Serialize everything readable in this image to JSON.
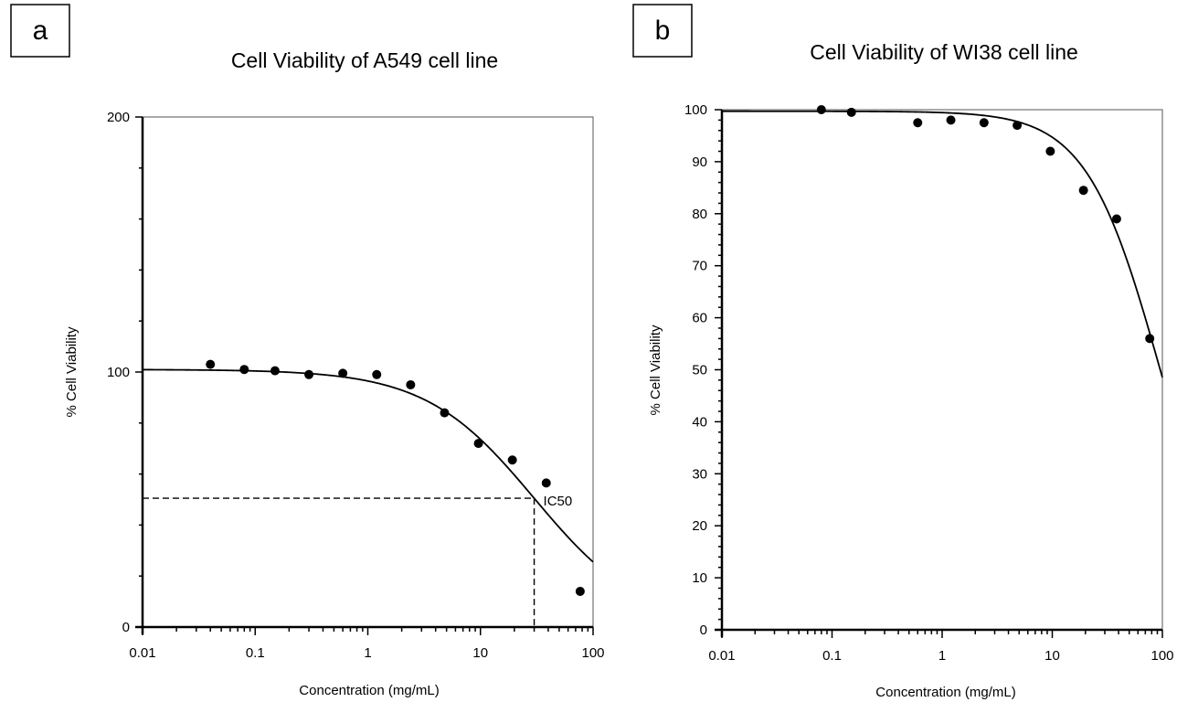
{
  "panels": [
    {
      "letter": "a"
    },
    {
      "letter": "b"
    }
  ],
  "chart_data": [
    {
      "type": "scatter",
      "title": "Cell Viability of A549 cell line",
      "xlabel": "Concentration (mg/mL)",
      "ylabel": "% Cell Viability",
      "xscale": "log",
      "xlim": [
        0.01,
        100
      ],
      "ylim": [
        0,
        200
      ],
      "xticks": [
        0.01,
        0.1,
        1,
        10,
        100
      ],
      "xtick_labels": [
        "0.01",
        "0.1",
        "1",
        "10",
        "100"
      ],
      "yticks": [
        0,
        100,
        200
      ],
      "ytick_labels": [
        "0",
        "100",
        "200"
      ],
      "grid": false,
      "series": [
        {
          "x": [
            0.04,
            0.08,
            0.15,
            0.3,
            0.6,
            1.2,
            2.4,
            4.8,
            9.6,
            19.2,
            38.4,
            76.8
          ],
          "y": [
            103,
            101,
            100.5,
            99,
            99.5,
            99,
            95,
            84,
            72,
            65.5,
            56.5,
            14
          ]
        }
      ],
      "fit_curve": {
        "top": 101,
        "bottom": 0,
        "ic50": 30,
        "hill": 0.9
      },
      "annotation": {
        "label": "IC50",
        "x": 30,
        "y": 50.5
      }
    },
    {
      "type": "scatter",
      "title": "Cell Viability of WI38 cell line",
      "xlabel": "Concentration (mg/mL)",
      "ylabel": "% Cell Viability",
      "xscale": "log",
      "xlim": [
        0.01,
        100
      ],
      "ylim": [
        0,
        100
      ],
      "xticks": [
        0.01,
        0.1,
        1,
        10,
        100
      ],
      "xtick_labels": [
        "0.01",
        "0.1",
        "1",
        "10",
        "100"
      ],
      "yticks": [
        0,
        10,
        20,
        30,
        40,
        50,
        60,
        70,
        80,
        90,
        100
      ],
      "ytick_labels": [
        "0",
        "10",
        "20",
        "30",
        "40",
        "50",
        "60",
        "70",
        "80",
        "90",
        "100"
      ],
      "grid": false,
      "series": [
        {
          "x": [
            0.08,
            0.15,
            0.6,
            1.2,
            2.4,
            4.8,
            9.6,
            19.2,
            38.4,
            76.8
          ],
          "y": [
            100,
            99.5,
            97.5,
            98,
            97.5,
            97,
            92,
            84.5,
            79,
            56
          ]
        }
      ],
      "fit_curve": {
        "top": 99.7,
        "bottom": 0,
        "ic50": 96,
        "hill": 1.3
      }
    }
  ]
}
